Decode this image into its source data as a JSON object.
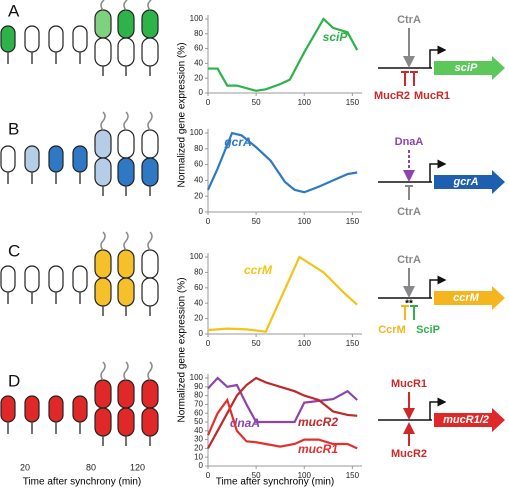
{
  "panels": [
    "A",
    "B",
    "C",
    "D"
  ],
  "cell_axis": {
    "label": "Time after synchrony (min)",
    "ticks": [
      "20",
      "80",
      "120"
    ]
  },
  "chart_data": [
    {
      "type": "line",
      "y_label": "Normalized gene expression (%)",
      "x": [
        0,
        10,
        20,
        30,
        50,
        60,
        75,
        85,
        100,
        120,
        130,
        145,
        155
      ],
      "series": [
        {
          "name": "sciP",
          "color": "#2db34a",
          "values": [
            33,
            33,
            10,
            10,
            3,
            5,
            12,
            18,
            55,
            100,
            88,
            82,
            58
          ]
        }
      ],
      "xlim": [
        0,
        160
      ],
      "ylim": [
        0,
        100
      ],
      "xticks": [
        0,
        50,
        100,
        150
      ],
      "yticks": [
        0,
        20,
        40,
        60,
        80,
        100
      ]
    },
    {
      "type": "line",
      "x": [
        0,
        10,
        25,
        35,
        50,
        65,
        80,
        90,
        100,
        115,
        130,
        145,
        155
      ],
      "series": [
        {
          "name": "gcrA",
          "color": "#2f78c4",
          "values": [
            28,
            55,
            100,
            97,
            82,
            65,
            38,
            28,
            25,
            32,
            40,
            48,
            50
          ]
        }
      ],
      "xlim": [
        0,
        160
      ],
      "ylim": [
        0,
        100
      ],
      "xticks": [
        0,
        50,
        100,
        150
      ],
      "yticks": [
        0,
        20,
        40,
        60,
        80,
        100
      ]
    },
    {
      "type": "line",
      "y_label": "Normalized gene expression (%)",
      "x": [
        0,
        20,
        40,
        60,
        95,
        120,
        140,
        155
      ],
      "series": [
        {
          "name": "ccrM",
          "color": "#f2c418",
          "values": [
            5,
            7,
            6,
            3,
            100,
            80,
            55,
            38
          ]
        }
      ],
      "xlim": [
        0,
        160
      ],
      "ylim": [
        0,
        100
      ],
      "xticks": [
        0,
        50,
        100,
        150
      ],
      "yticks": [
        0,
        20,
        40,
        60,
        80,
        100
      ]
    },
    {
      "type": "line",
      "x_label": "Time after synchrony (min)",
      "x": [
        0,
        10,
        20,
        30,
        40,
        50,
        60,
        75,
        90,
        100,
        115,
        130,
        145,
        155
      ],
      "series": [
        {
          "name": "dnaA",
          "color": "#8e44ad",
          "values": [
            88,
            100,
            90,
            92,
            70,
            50,
            50,
            50,
            50,
            72,
            74,
            76,
            85,
            75
          ]
        },
        {
          "name": "mucR2",
          "color": "#c0282a",
          "values": [
            20,
            40,
            60,
            80,
            92,
            100,
            95,
            90,
            85,
            80,
            75,
            62,
            58,
            57
          ]
        },
        {
          "name": "mucR1",
          "color": "#e03030",
          "values": [
            35,
            60,
            75,
            40,
            28,
            27,
            25,
            22,
            25,
            30,
            30,
            25,
            25,
            20
          ]
        }
      ],
      "xlim": [
        0,
        160
      ],
      "ylim": [
        0,
        100
      ],
      "xticks": [
        0,
        50,
        100,
        150
      ],
      "yticks": [
        0,
        10,
        20,
        30,
        40,
        50,
        60,
        70,
        80,
        90,
        100
      ]
    }
  ],
  "diagrams": [
    {
      "gene": "sciP",
      "regulators": [
        "CtrA",
        "MucR2",
        "MucR1"
      ]
    },
    {
      "gene": "gcrA",
      "regulators": [
        "DnaA",
        "CtrA"
      ]
    },
    {
      "gene": "ccrM",
      "regulators": [
        "CtrA",
        "CcrM",
        "SciP"
      ],
      "site_mark": "**"
    },
    {
      "gene": "mucR1/2",
      "regulators": [
        "MucR1",
        "MucR2"
      ]
    }
  ]
}
